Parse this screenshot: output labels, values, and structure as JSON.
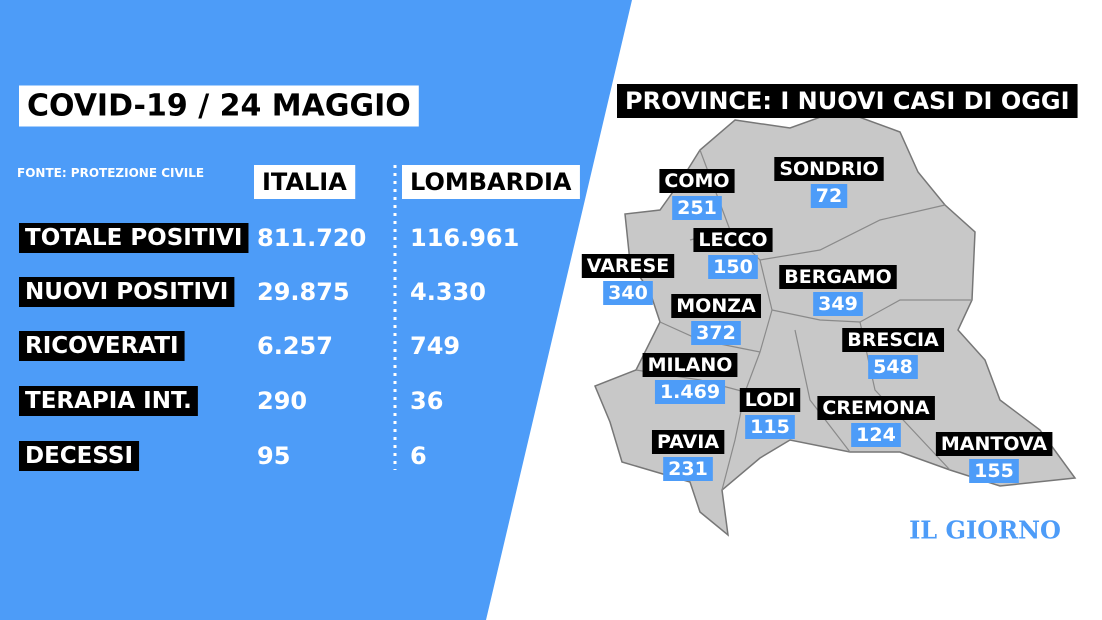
{
  "header": {
    "title": "COVID-19 / 24 MAGGIO",
    "source": "FONTE: PROTEZIONE CIVILE"
  },
  "table": {
    "columns": [
      "ITALIA",
      "LOMBARDIA"
    ],
    "rows": [
      [
        "TOTALE POSITIVI",
        "811.720",
        "116.961"
      ],
      [
        "NUOVI POSITIVI",
        "29.875",
        "4.330"
      ],
      [
        "RICOVERATI",
        "6.257",
        "749"
      ],
      [
        "TERAPIA INT.",
        "290",
        "36"
      ],
      [
        "DECESSI",
        "95",
        "6"
      ]
    ]
  },
  "map": {
    "title": "PROVINCE: I NUOVI CASI DI OGGI",
    "provinces": [
      {
        "name": "COMO",
        "value": "251"
      },
      {
        "name": "SONDRIO",
        "value": "72"
      },
      {
        "name": "LECCO",
        "value": "150"
      },
      {
        "name": "VARESE",
        "value": "340"
      },
      {
        "name": "BERGAMO",
        "value": "349"
      },
      {
        "name": "MONZA",
        "value": "372"
      },
      {
        "name": "BRESCIA",
        "value": "548"
      },
      {
        "name": "MILANO",
        "value": "1.469"
      },
      {
        "name": "LODI",
        "value": "115"
      },
      {
        "name": "CREMONA",
        "value": "124"
      },
      {
        "name": "PAVIA",
        "value": "231"
      },
      {
        "name": "MANTOVA",
        "value": "155"
      }
    ]
  },
  "logo": "IL GIORNO"
}
